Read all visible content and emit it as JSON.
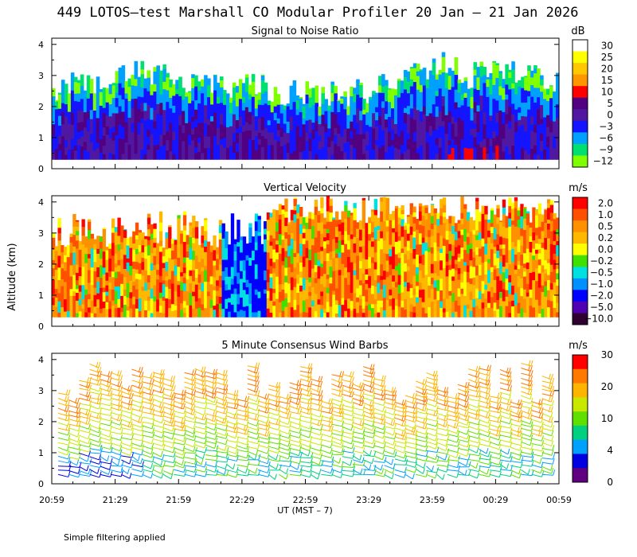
{
  "figure": {
    "title": "449 LOTOS–test Marshall CO Modular Profiler 20 Jan – 21 Jan 2026",
    "xlabel": "UT  (MST – 7)",
    "ylabel": "Altitude (km)",
    "note": "Simple filtering applied",
    "x_ticks": [
      "20:59",
      "21:29",
      "21:59",
      "22:29",
      "22:59",
      "23:29",
      "23:59",
      "00:29",
      "00:59"
    ],
    "y_ticks": [
      "0",
      "1",
      "2",
      "3",
      "4"
    ],
    "ylim": [
      0,
      4.2
    ]
  },
  "chart_data": [
    {
      "type": "heatmap",
      "title": "Signal to Noise Ratio",
      "units": "dB",
      "ylim": [
        0,
        4.2
      ],
      "colorbar": {
        "labels": [
          "30",
          "25",
          "20",
          "15",
          "10",
          "5",
          "0",
          "−3",
          "−6",
          "−9",
          "−12"
        ],
        "colors": [
          "#ffffff",
          "#ffff00",
          "#ffc800",
          "#ff9600",
          "#ff0000",
          "#500080",
          "#5018a0",
          "#1414ff",
          "#00a0ff",
          "#00e070",
          "#80ff00"
        ]
      },
      "profile_summary": {
        "start": "20:59",
        "end": "00:59",
        "upper_level_km": 2.1,
        "lower_level_km": 0.3
      }
    },
    {
      "type": "heatmap",
      "title": "Vertical Velocity",
      "units": "m/s",
      "ylim": [
        0,
        4.2
      ],
      "colorbar": {
        "labels": [
          "2.0",
          "1.0",
          "0.5",
          "0.2",
          "0.0",
          "−0.2",
          "−0.5",
          "−1.0",
          "−2.0",
          "−5.0",
          "−10.0"
        ],
        "colors": [
          "#ff0000",
          "#ff5000",
          "#ff9000",
          "#ffb800",
          "#ffff00",
          "#40e000",
          "#00e0e0",
          "#0090ff",
          "#0000ff",
          "#5000b0",
          "#300030"
        ]
      }
    },
    {
      "type": "scatter",
      "title": "5 Minute Consensus Wind Barbs",
      "units": "m/s",
      "ylim": [
        0,
        4.2
      ],
      "colorbar": {
        "labels": [
          "30",
          "20",
          "10",
          "4",
          "0"
        ],
        "colors": [
          "#ff0000",
          "#ff7800",
          "#ffb400",
          "#c8e800",
          "#60e000",
          "#00d080",
          "#00a0ff",
          "#0000e0",
          "#600080"
        ]
      }
    }
  ]
}
